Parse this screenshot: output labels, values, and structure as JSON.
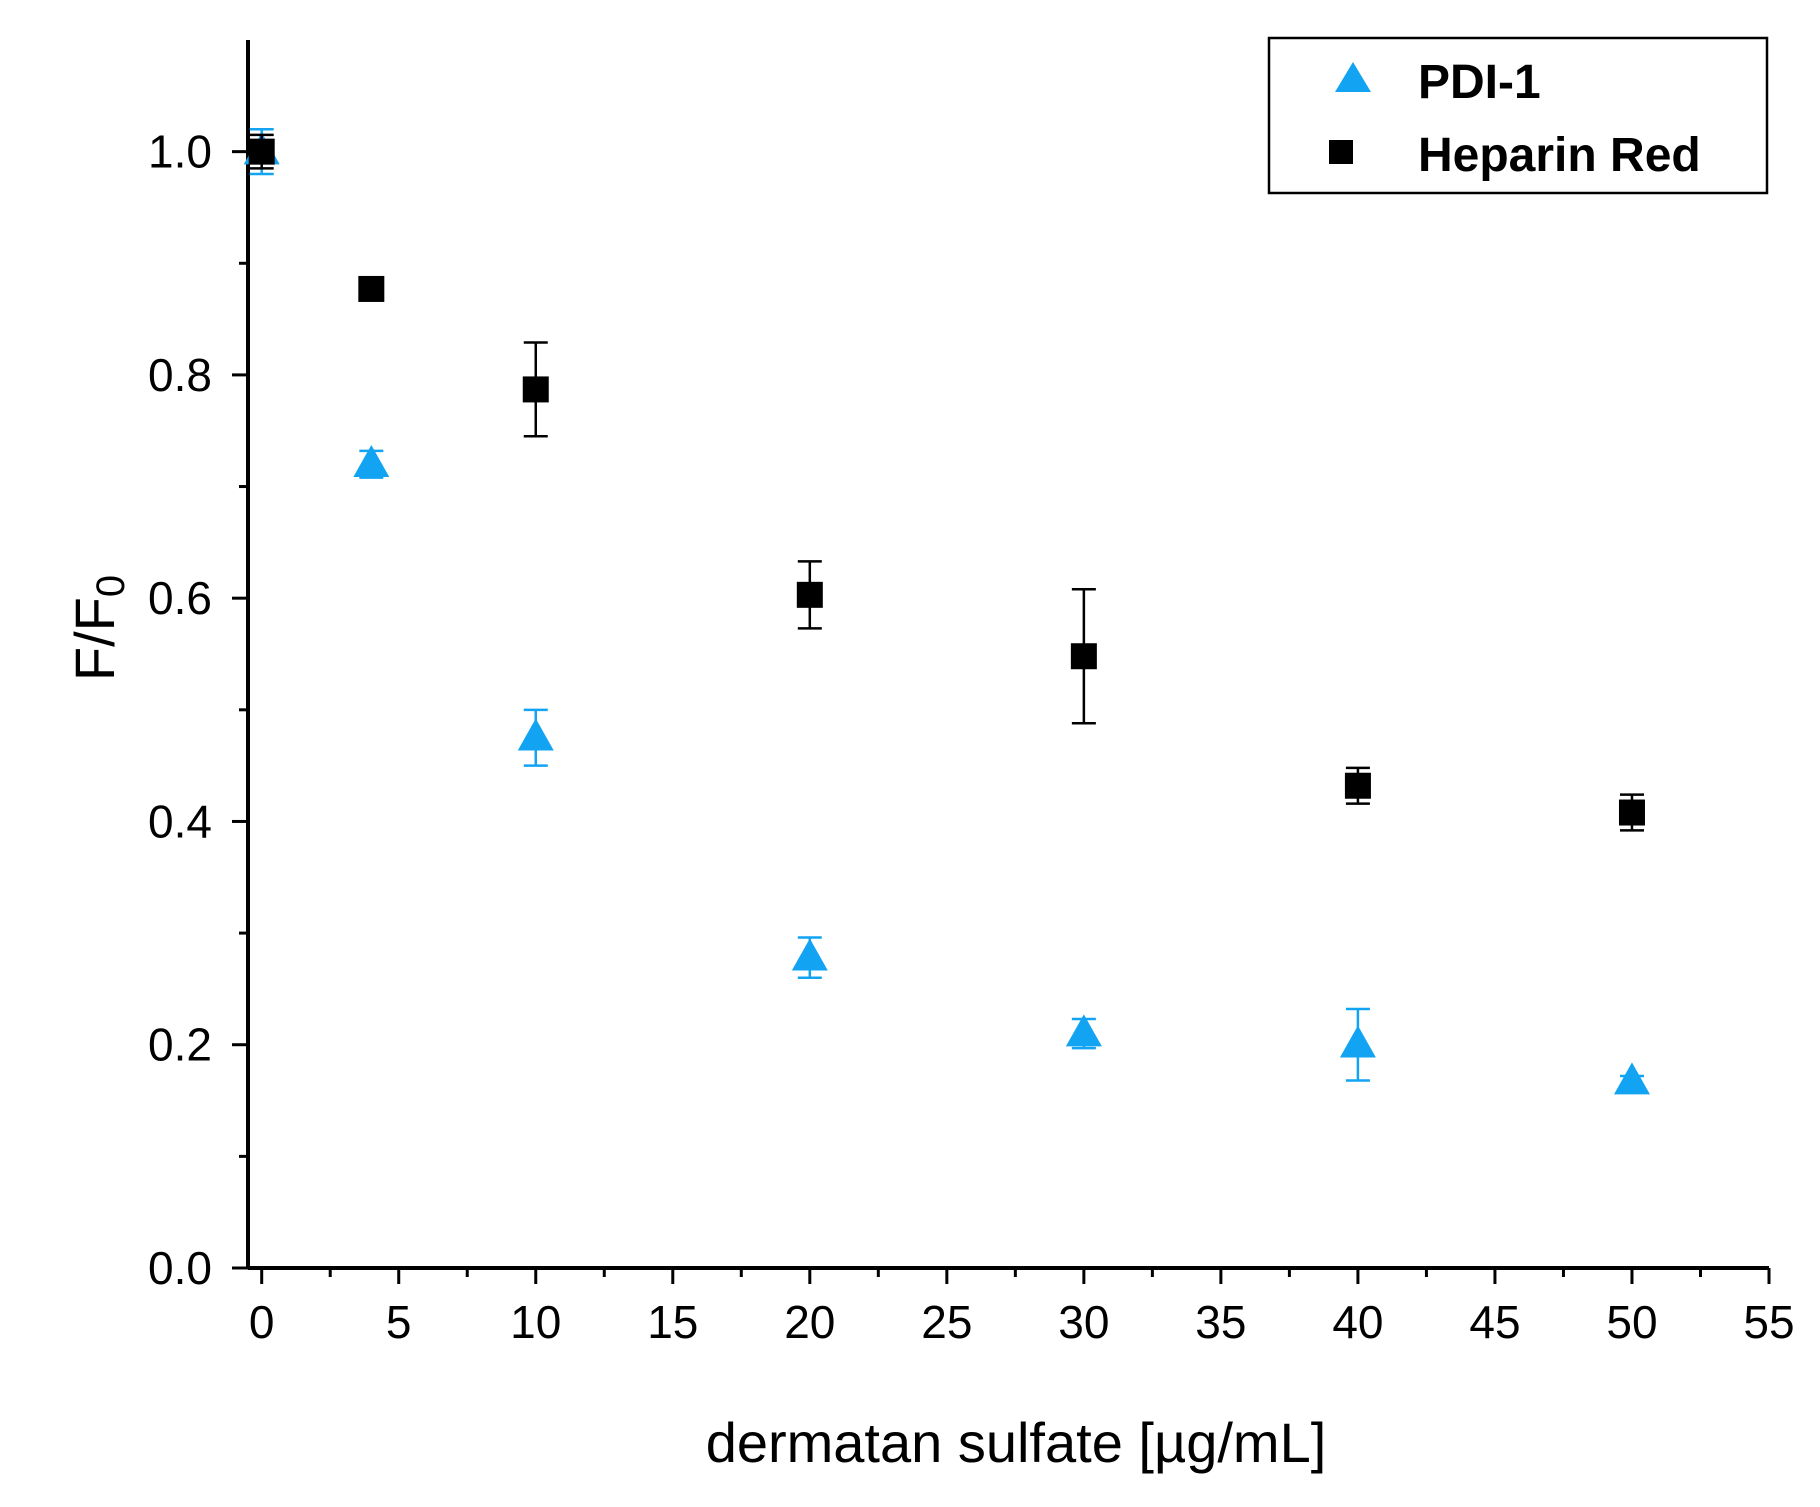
{
  "chart_data": {
    "type": "scatter",
    "title": "",
    "xlabel": "dermatan sulfate [µg/mL]",
    "ylabel_main": "F/F",
    "ylabel_sub": "0",
    "xlim": [
      -0.5,
      55
    ],
    "ylim": [
      0,
      1.1
    ],
    "x_ticks": [
      0,
      5,
      10,
      15,
      20,
      25,
      30,
      35,
      40,
      45,
      50,
      55
    ],
    "x_tick_labels": [
      "0",
      "5",
      "10",
      "15",
      "20",
      "25",
      "30",
      "35",
      "40",
      "45",
      "50",
      "55"
    ],
    "y_ticks": [
      0.0,
      0.2,
      0.4,
      0.6,
      0.8,
      1.0
    ],
    "y_tick_labels": [
      "0.0",
      "0.2",
      "0.4",
      "0.6",
      "0.8",
      "1.0"
    ],
    "grid": false,
    "legend_position": "top-right",
    "series": [
      {
        "name": "PDI-1",
        "marker": "triangle",
        "color": "#12A4F2",
        "x": [
          0,
          4,
          10,
          20,
          30,
          40,
          50
        ],
        "y": [
          1.0,
          0.72,
          0.475,
          0.278,
          0.21,
          0.2,
          0.167
        ],
        "err": [
          0.02,
          0.012,
          0.025,
          0.018,
          0.013,
          0.032,
          0.005
        ]
      },
      {
        "name": "Heparin Red",
        "marker": "square",
        "color": "#000000",
        "x": [
          0,
          4,
          10,
          20,
          30,
          40,
          50
        ],
        "y": [
          1.0,
          0.877,
          0.787,
          0.603,
          0.548,
          0.432,
          0.408
        ],
        "err": [
          0.015,
          0.008,
          0.042,
          0.03,
          0.06,
          0.016,
          0.016
        ]
      }
    ]
  }
}
